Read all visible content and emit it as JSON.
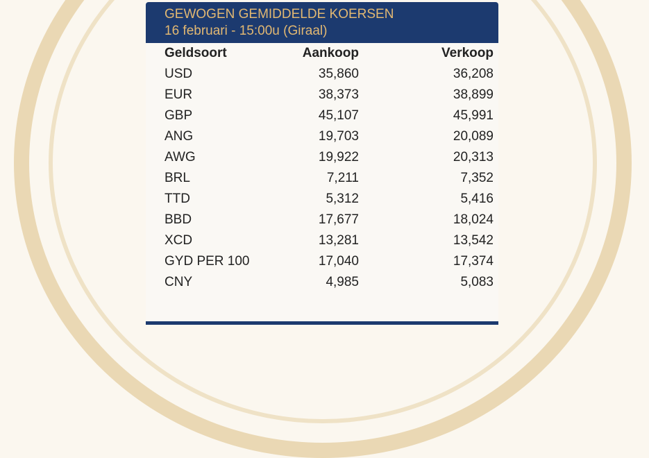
{
  "header": {
    "title": "GEWOGEN GEMIDDELDE KOERSEN",
    "subtitle": "16 februari - 15:00u (Giraal)"
  },
  "columns": [
    "Geldsoort",
    "Aankoop",
    "Verkoop"
  ],
  "rows": [
    [
      "USD",
      "35,860",
      "36,208"
    ],
    [
      "EUR",
      "38,373",
      "38,899"
    ],
    [
      "GBP",
      "45,107",
      "45,991"
    ],
    [
      "ANG",
      "19,703",
      "20,089"
    ],
    [
      "AWG",
      "19,922",
      "20,313"
    ],
    [
      "BRL",
      "7,211",
      "7,352"
    ],
    [
      "TTD",
      "5,312",
      "5,416"
    ],
    [
      "BBD",
      "17,677",
      "18,024"
    ],
    [
      "XCD",
      "13,281",
      "13,542"
    ],
    [
      "GYD PER 100",
      "17,040",
      "17,374"
    ],
    [
      "CNY",
      "4,985",
      "5,083"
    ]
  ]
}
